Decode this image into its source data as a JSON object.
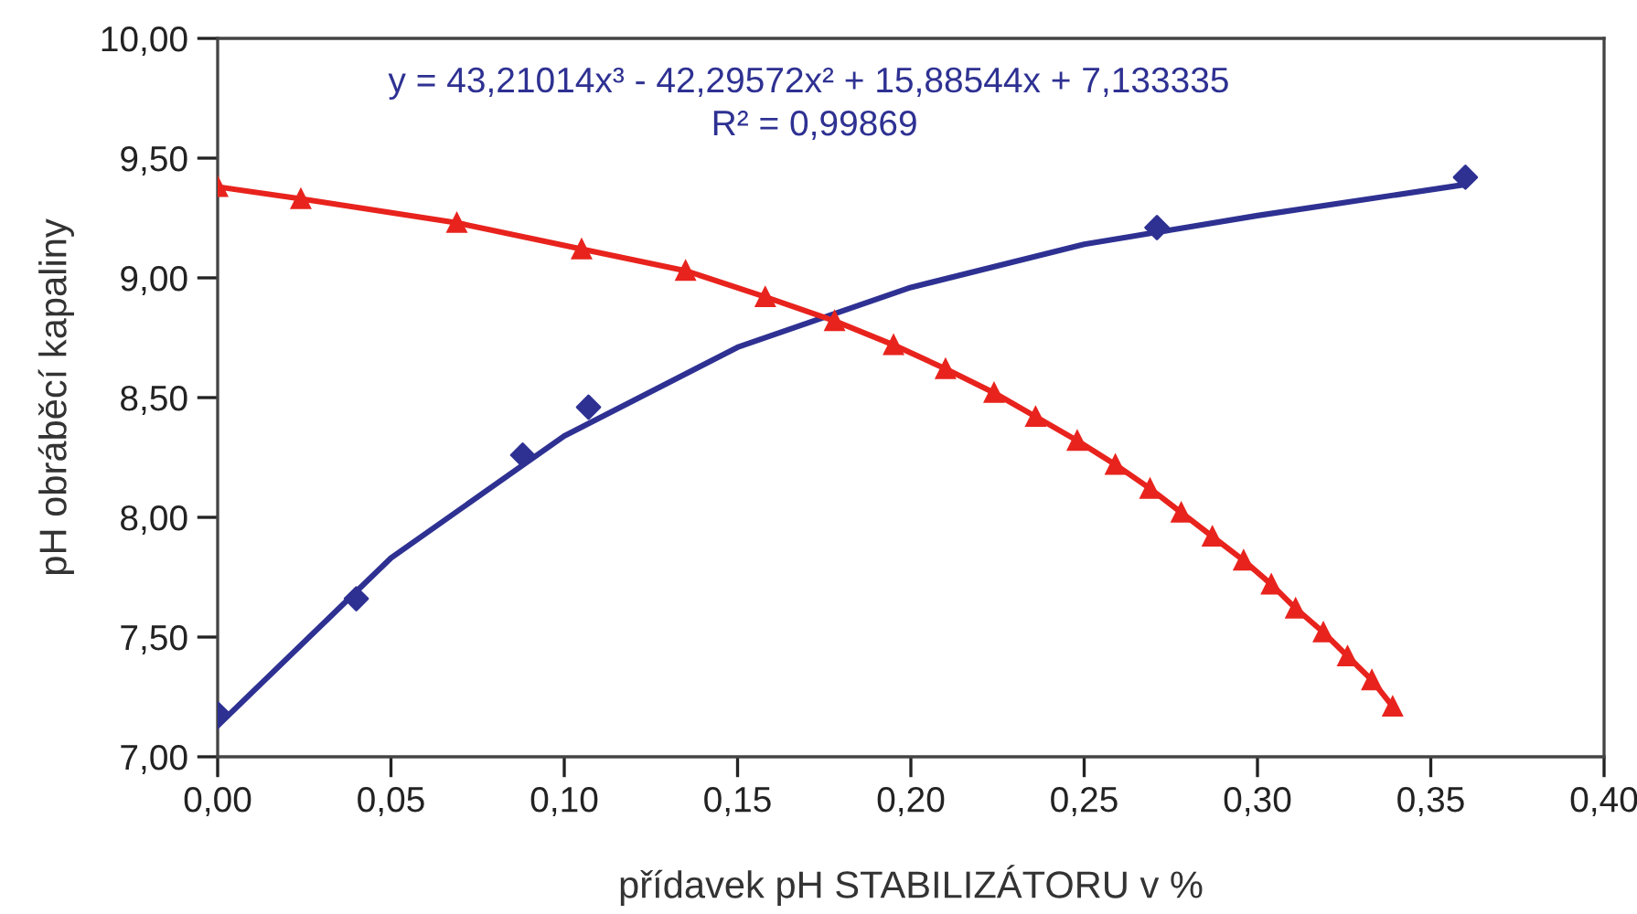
{
  "chart_data": {
    "type": "line",
    "xlabel": "přídavek pH STABILIZÁTORU v %",
    "ylabel": "pH obráběcí kapaliny",
    "annotations": [
      "y = 43,21014x³ - 42,29572x² + 15,88544x + 7,133335",
      "R² = 0,99869"
    ],
    "xlim": [
      0,
      0.4
    ],
    "ylim": [
      7,
      10
    ],
    "xticks": [
      {
        "value": 0,
        "label": "0,00"
      },
      {
        "value": 0.05,
        "label": "0,05"
      },
      {
        "value": 0.1,
        "label": "0,10"
      },
      {
        "value": 0.15,
        "label": "0,15"
      },
      {
        "value": 0.2,
        "label": "0,20"
      },
      {
        "value": 0.25,
        "label": "0,25"
      },
      {
        "value": 0.3,
        "label": "0,30"
      },
      {
        "value": 0.35,
        "label": "0,35"
      },
      {
        "value": 0.4,
        "label": "0,40"
      }
    ],
    "yticks": [
      {
        "value": 7,
        "label": "7,00"
      },
      {
        "value": 7.5,
        "label": "7,50"
      },
      {
        "value": 8,
        "label": "8,00"
      },
      {
        "value": 8.5,
        "label": "8,50"
      },
      {
        "value": 9,
        "label": "9,00"
      },
      {
        "value": 9.5,
        "label": "9,50"
      },
      {
        "value": 10,
        "label": "10,00"
      }
    ],
    "grid": false,
    "legend": false,
    "series": [
      {
        "type": "line",
        "color": "#2e3192",
        "marker": "none",
        "x": [
          0,
          0.05,
          0.1,
          0.15,
          0.2,
          0.25,
          0.3,
          0.36
        ],
        "values": [
          7.13,
          7.83,
          8.34,
          8.71,
          8.96,
          9.14,
          9.26,
          9.39
        ]
      },
      {
        "type": "scatter",
        "color": "#2e3192",
        "marker": "diamond",
        "x": [
          0,
          0.04,
          0.088,
          0.107,
          0.271,
          0.36
        ],
        "values": [
          7.18,
          7.66,
          8.26,
          8.46,
          9.21,
          9.42
        ]
      },
      {
        "color": "#e8231d",
        "marker": "triangle",
        "x": [
          0,
          0.024,
          0.069,
          0.105,
          0.135,
          0.158,
          0.178,
          0.195,
          0.21,
          0.224,
          0.236,
          0.248,
          0.259,
          0.269,
          0.278,
          0.287,
          0.296,
          0.304,
          0.311,
          0.319,
          0.326,
          0.333,
          0.339
        ],
        "values": [
          9.38,
          9.33,
          9.23,
          9.12,
          9.03,
          8.92,
          8.82,
          8.72,
          8.62,
          8.52,
          8.42,
          8.32,
          8.22,
          8.12,
          8.02,
          7.92,
          7.82,
          7.72,
          7.62,
          7.52,
          7.42,
          7.32,
          7.21
        ]
      }
    ]
  }
}
